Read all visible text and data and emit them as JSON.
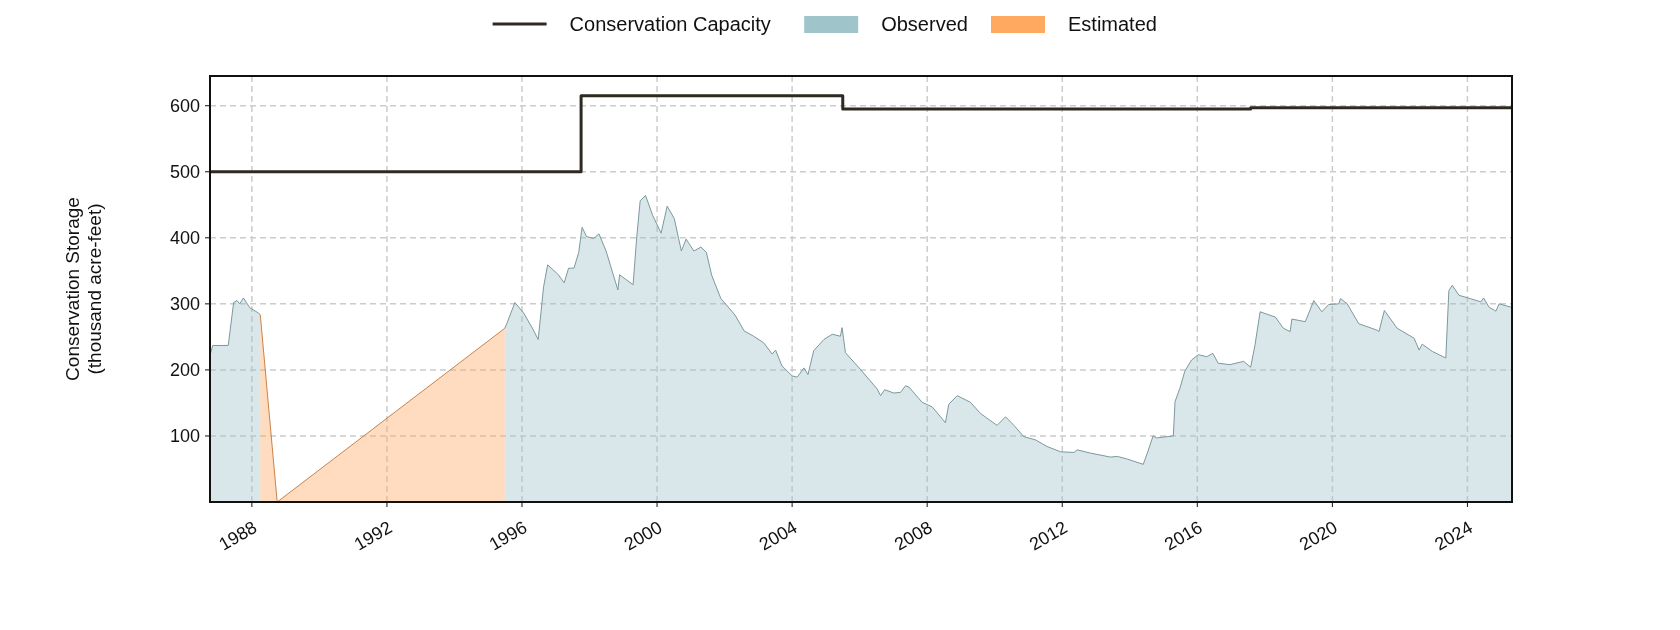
{
  "chart_data": {
    "type": "area",
    "ylabel": "Conservation Storage\n(thousand acre-feet)",
    "xlim": [
      1986.76,
      2025.32
    ],
    "xticks": [
      1988,
      1992,
      1996,
      2000,
      2004,
      2008,
      2012,
      2016,
      2020,
      2024
    ],
    "ylim": [
      0,
      645
    ],
    "yticks": [
      100,
      200,
      300,
      400,
      500,
      600
    ],
    "grid": true,
    "legend": "top",
    "series": [
      {
        "name": "Conservation Capacity",
        "type": "step",
        "color": "#2e2a22",
        "x": [
          1986.76,
          1997.75,
          2005.5,
          2017.58,
          2025.32
        ],
        "values": [
          500,
          615,
          595,
          597,
          597
        ]
      },
      {
        "name": "Observed",
        "color": "#9fc4ca",
        "x": [
          1986.77,
          1986.84,
          1987.3,
          1987.46,
          1987.56,
          1987.64,
          1987.75,
          1987.94,
          1988.2,
          1988.25,
          1992,
          1995.49,
          1995.55,
          1995.79,
          1996.05,
          1996.32,
          1996.48,
          1996.64,
          1996.76,
          1997.06,
          1997.25,
          1997.38,
          1997.54,
          1997.68,
          1997.78,
          1997.91,
          1998.12,
          1998.28,
          1998.49,
          1998.84,
          1998.89,
          1999.29,
          1999.4,
          1999.5,
          1999.66,
          1999.87,
          2000.12,
          2000.3,
          2000.51,
          2000.72,
          2000.86,
          2001.09,
          2001.3,
          2001.46,
          2001.62,
          2001.89,
          2002.31,
          2002.58,
          2002.86,
          2003.16,
          2003.41,
          2003.51,
          2003.7,
          2004.0,
          2004.15,
          2004.35,
          2004.47,
          2004.64,
          2004.94,
          2005.19,
          2005.43,
          2005.48,
          2005.58,
          2006.02,
          2006.52,
          2006.62,
          2006.74,
          2007.01,
          2007.21,
          2007.36,
          2007.46,
          2007.85,
          2008.15,
          2008.54,
          2008.64,
          2008.89,
          2009.28,
          2009.58,
          2010.07,
          2010.32,
          2010.57,
          2010.86,
          2011.21,
          2011.55,
          2011.95,
          2012.35,
          2012.44,
          2012.84,
          2013.43,
          2013.63,
          2013.93,
          2014.1,
          2014.4,
          2014.54,
          2014.69,
          2014.79,
          2015.29,
          2015.34,
          2015.49,
          2015.63,
          2015.83,
          2016.03,
          2016.28,
          2016.46,
          2016.62,
          2016.97,
          2017.37,
          2017.58,
          2017.71,
          2017.86,
          2018.31,
          2018.55,
          2018.75,
          2018.8,
          2019.2,
          2019.45,
          2019.69,
          2019.89,
          2020.19,
          2020.24,
          2020.44,
          2020.78,
          2021.33,
          2021.38,
          2021.54,
          2021.92,
          2022.42,
          2022.57,
          2022.66,
          2022.96,
          2023.36,
          2023.45,
          2023.55,
          2023.75,
          2024.08,
          2024.4,
          2024.48,
          2024.64,
          2024.84,
          2024.94,
          2025.29
        ],
        "values": [
          224,
          237,
          237,
          302,
          305,
          300,
          309,
          294,
          286,
          283,
          null,
          263,
          270,
          302,
          286,
          262,
          246,
          326,
          359,
          345,
          332,
          354,
          354,
          378,
          416,
          402,
          399,
          406,
          380,
          321,
          344,
          329,
          402,
          456,
          464,
          434,
          407,
          448,
          429,
          380,
          398,
          380,
          386,
          378,
          343,
          308,
          283,
          259,
          251,
          241,
          224,
          230,
          206,
          191,
          189,
          203,
          193,
          229,
          246,
          254,
          251,
          264,
          226,
          201,
          171,
          161,
          170,
          165,
          166,
          176,
          174,
          151,
          144,
          120,
          148,
          161,
          151,
          134,
          116,
          129,
          116,
          99,
          94,
          84,
          76,
          75,
          79,
          74,
          68,
          69,
          65,
          62,
          57,
          77,
          100,
          97,
          100,
          152,
          173,
          198,
          215,
          223,
          220,
          225,
          210,
          208,
          213,
          204,
          238,
          288,
          280,
          263,
          258,
          277,
          273,
          305,
          288,
          299,
          300,
          308,
          300,
          270,
          260,
          258,
          290,
          263,
          248,
          230,
          239,
          228,
          218,
          320,
          328,
          313,
          308,
          303,
          309,
          295,
          289,
          300,
          295
        ]
      },
      {
        "name": "Estimated",
        "color": "#ffa860",
        "x": [
          1988.25,
          1988.75,
          1995.49
        ],
        "values": [
          283,
          0,
          263
        ]
      }
    ]
  }
}
